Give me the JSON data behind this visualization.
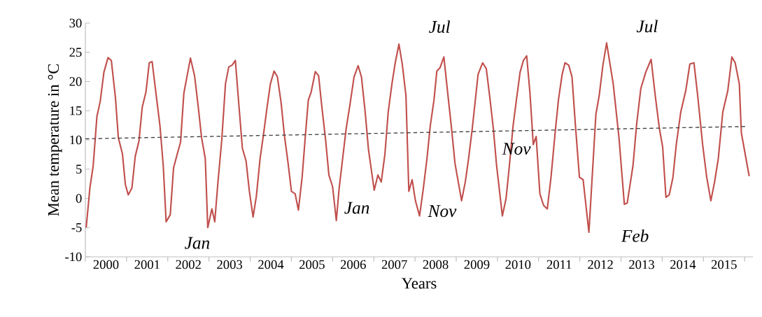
{
  "chart_data": {
    "type": "line",
    "xlabel": "Years",
    "ylabel": "Mean temperature in °C",
    "xlim": [
      1999.5,
      2015.7
    ],
    "ylim": [
      -10,
      30
    ],
    "yticks": [
      -10,
      -5,
      0,
      5,
      10,
      15,
      20,
      25,
      30
    ],
    "xticks": [
      {
        "value": 1999.5,
        "label": null
      },
      {
        "value": 2000.5,
        "label": null
      },
      {
        "value": 2001.5,
        "label": null
      },
      {
        "value": 2002.5,
        "label": null
      },
      {
        "value": 2003.5,
        "label": null
      },
      {
        "value": 2004.5,
        "label": null
      },
      {
        "value": 2005.5,
        "label": null
      },
      {
        "value": 2006.5,
        "label": null
      },
      {
        "value": 2007.5,
        "label": null
      },
      {
        "value": 2008.5,
        "label": null
      },
      {
        "value": 2009.5,
        "label": null
      },
      {
        "value": 2010.5,
        "label": null
      },
      {
        "value": 2011.5,
        "label": null
      },
      {
        "value": 2012.5,
        "label": null
      },
      {
        "value": 2013.5,
        "label": null
      },
      {
        "value": 2014.5,
        "label": null
      },
      {
        "value": 2015.5,
        "label": null
      },
      2000,
      2001,
      2002,
      2003,
      2004,
      2005,
      2006,
      2007,
      2008,
      2009,
      2010,
      2011,
      2012,
      2013,
      2014,
      2015
    ],
    "grid": false,
    "legend": false,
    "marker": "none",
    "series": [
      {
        "color": "#c0504d",
        "line_style": "solid",
        "x": [
          1999.52,
          1999.61,
          1999.69,
          1999.78,
          1999.86,
          1999.95,
          2000.05,
          2000.13,
          2000.23,
          2000.3,
          2000.4,
          2000.47,
          2000.54,
          2000.63,
          2000.71,
          2000.8,
          2000.88,
          2000.97,
          2001.05,
          2001.12,
          2001.22,
          2001.31,
          2001.39,
          2001.46,
          2001.56,
          2001.64,
          2001.73,
          2001.81,
          2001.89,
          2001.97,
          2002.05,
          2002.15,
          2002.24,
          2002.32,
          2002.41,
          2002.47,
          2002.57,
          2002.64,
          2002.72,
          2002.81,
          2002.9,
          2002.98,
          2003.06,
          2003.14,
          2003.23,
          2003.31,
          2003.4,
          2003.48,
          2003.57,
          2003.65,
          2003.74,
          2003.82,
          2003.91,
          2003.99,
          2004.08,
          2004.16,
          2004.25,
          2004.33,
          2004.42,
          2004.5,
          2004.59,
          2004.67,
          2004.76,
          2004.84,
          2004.91,
          2004.98,
          2005.08,
          2005.16,
          2005.24,
          2005.33,
          2005.41,
          2005.5,
          2005.59,
          2005.66,
          2005.75,
          2005.83,
          2005.92,
          2006.02,
          2006.12,
          2006.2,
          2006.29,
          2006.37,
          2006.51,
          2006.6,
          2006.68,
          2006.77,
          2006.85,
          2006.94,
          2007.02,
          2007.11,
          2007.19,
          2007.28,
          2007.35,
          2007.43,
          2007.51,
          2007.61,
          2007.7,
          2007.79,
          2007.87,
          2007.96,
          2008.03,
          2008.11,
          2008.2,
          2008.3,
          2008.38,
          2008.47,
          2008.55,
          2008.63,
          2008.72,
          2008.8,
          2008.89,
          2009.03,
          2009.14,
          2009.23,
          2009.31,
          2009.4,
          2009.48,
          2009.62,
          2009.71,
          2009.79,
          2009.88,
          2009.96,
          2010.05,
          2010.13,
          2010.21,
          2010.29,
          2010.37,
          2010.44,
          2010.53,
          2010.62,
          2010.71,
          2010.8,
          2010.9,
          2010.98,
          2011.07,
          2011.14,
          2011.23,
          2011.31,
          2011.39,
          2011.49,
          2011.58,
          2011.72,
          2011.89,
          2011.97,
          2012.06,
          2012.15,
          2012.31,
          2012.45,
          2012.58,
          2012.65,
          2012.79,
          2012.88,
          2012.98,
          2013.1,
          2013.23,
          2013.33,
          2013.43,
          2013.51,
          2013.59,
          2013.67,
          2013.76,
          2013.84,
          2013.95,
          2014.07,
          2014.17,
          2014.27,
          2014.36,
          2014.48,
          2014.58,
          2014.68,
          2014.77,
          2014.86,
          2014.97,
          2015.09,
          2015.19,
          2015.27,
          2015.37,
          2015.42,
          2015.61
        ],
        "values": [
          -5,
          1.8,
          5.6,
          14,
          16.6,
          21.6,
          24.1,
          23.6,
          17.2,
          10.4,
          7.6,
          2.4,
          0.6,
          1.8,
          7.2,
          9.8,
          15.6,
          18.2,
          23.2,
          23.4,
          17.6,
          12.4,
          5.6,
          -4,
          -2.8,
          5.2,
          7.6,
          9.6,
          18,
          21,
          24,
          21,
          15.6,
          10.4,
          6.8,
          -5,
          -1.8,
          -4,
          3,
          10,
          19.6,
          22.5,
          22.8,
          23.6,
          15.6,
          8.6,
          6.4,
          1.2,
          -3.2,
          0.4,
          6.8,
          10.8,
          15.6,
          19.6,
          21.8,
          20.8,
          16.4,
          10.8,
          6,
          1.2,
          0.8,
          -2,
          3.6,
          10.8,
          16.8,
          18.2,
          21.7,
          21,
          15.6,
          10,
          4,
          2,
          -3.8,
          1.8,
          7.2,
          12,
          16,
          20.8,
          22.7,
          20.8,
          14.8,
          8.4,
          1.4,
          4,
          2.8,
          7.6,
          14.8,
          19.6,
          23.2,
          26.4,
          23,
          17.6,
          1.2,
          3.2,
          -0.4,
          -3,
          1.6,
          6.8,
          12.4,
          16.8,
          21.8,
          22.4,
          24.2,
          17.6,
          12.4,
          6,
          2.8,
          -0.4,
          2.8,
          6.8,
          12,
          21.2,
          23.2,
          22.2,
          17.6,
          12,
          5.6,
          -3,
          0,
          5.6,
          12.4,
          16.8,
          21.6,
          23.6,
          24.4,
          18,
          9.2,
          10.6,
          0.8,
          -1.2,
          -1.8,
          3.6,
          11.2,
          16.8,
          21.2,
          23.2,
          22.8,
          20.8,
          12.8,
          3.6,
          3.2,
          -5.8,
          14.4,
          17.6,
          22.8,
          26.6,
          19.6,
          10.4,
          -1,
          -0.8,
          5.6,
          12.8,
          18.8,
          21.6,
          23.8,
          17.6,
          12,
          8.8,
          0.2,
          0.6,
          3.6,
          9.2,
          14.8,
          18.4,
          23,
          23.2,
          17.6,
          9.2,
          3.6,
          -0.4,
          2.8,
          6.8,
          14.8,
          18.4,
          24.2,
          23.2,
          19.6,
          11.2,
          3.8
        ]
      },
      {
        "color": "#404040",
        "line_style": "dashed",
        "x": [
          1999.5,
          2015.51
        ],
        "values": [
          10.2,
          12.3
        ]
      }
    ],
    "annotations": [
      {
        "text": "Jan",
        "x": 2002.47,
        "y": -5
      },
      {
        "text": "Jan",
        "x": 2006.6,
        "y": 4
      },
      {
        "text": "Jul",
        "x": 2007.11,
        "y": 26.4
      },
      {
        "text": "Nov",
        "x": 2007.43,
        "y": 3.2
      },
      {
        "text": "Nov",
        "x": 2010.37,
        "y": 9.2
      },
      {
        "text": "Jul",
        "x": 2012.15,
        "y": 26.6
      },
      {
        "text": "Feb",
        "x": 2011.72,
        "y": -5.8
      }
    ]
  }
}
